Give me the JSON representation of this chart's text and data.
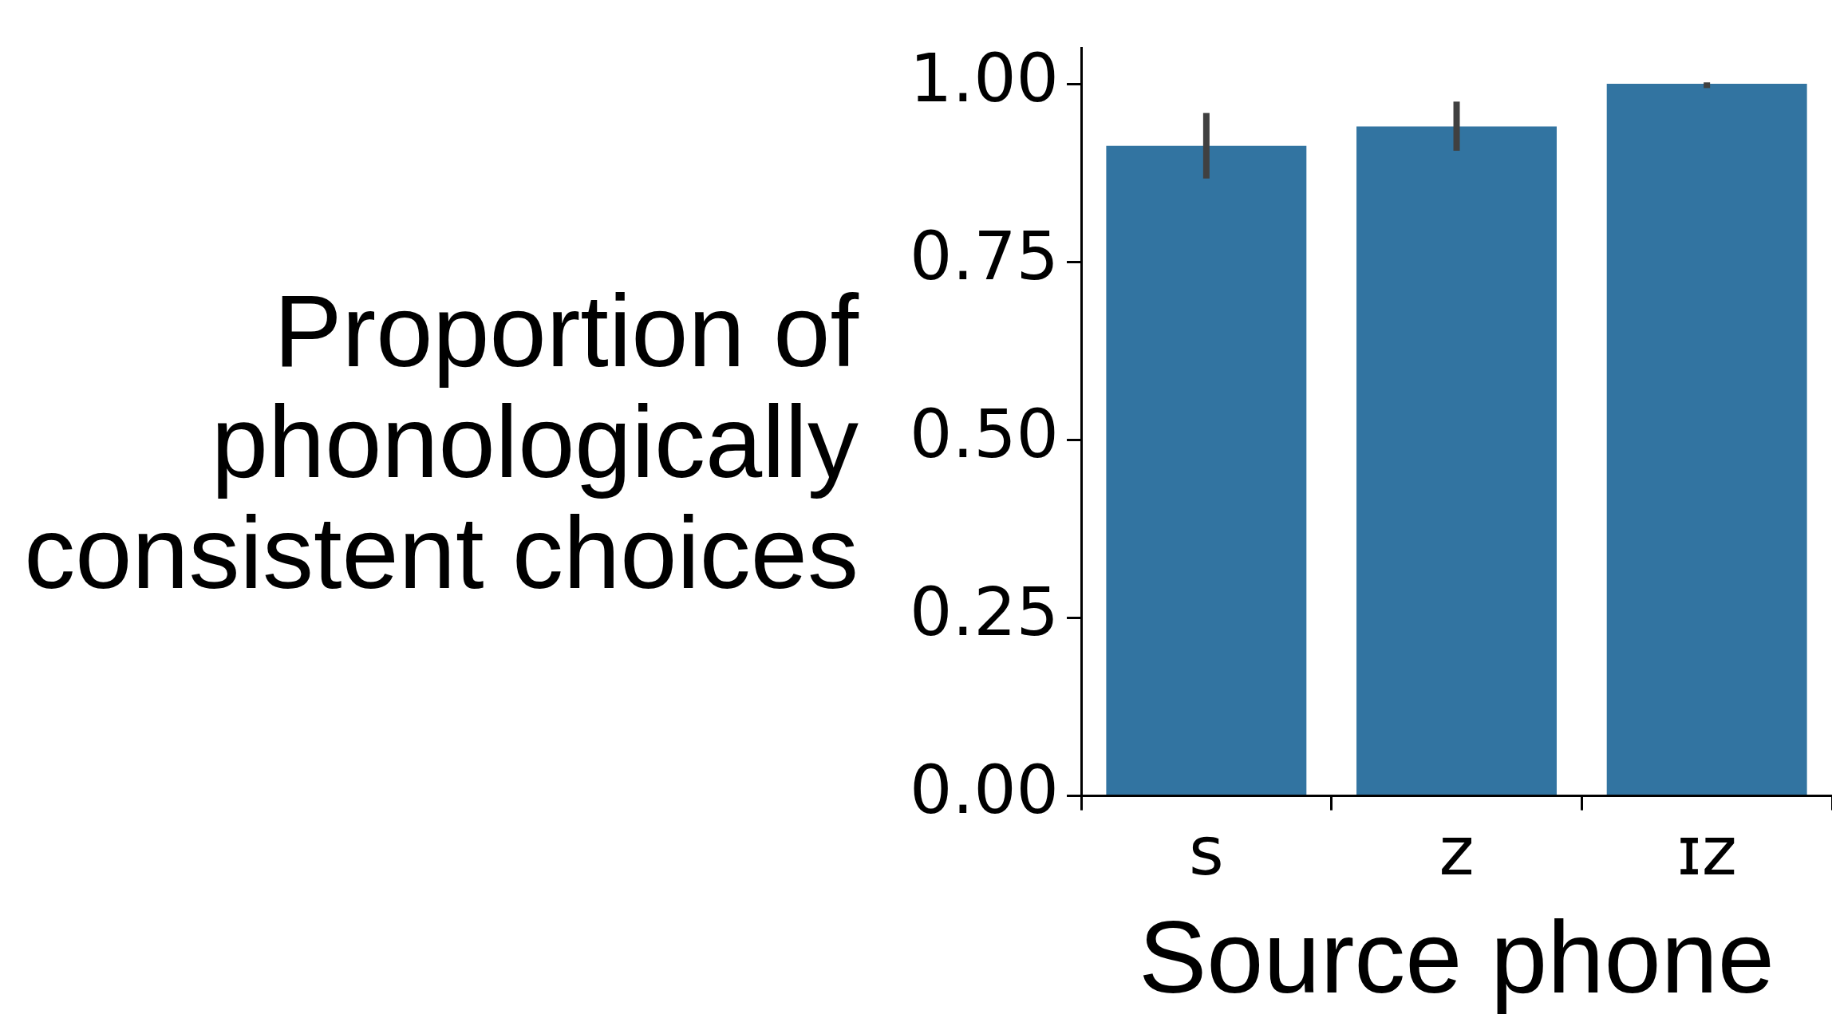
{
  "chart_data": {
    "type": "bar",
    "xlabel": "Source phone",
    "ylabel": "Proportion of\nphonologically\nconsistent choices",
    "categories": [
      "s",
      "z",
      "ɪz"
    ],
    "values": [
      0.913,
      0.94,
      1.0
    ],
    "errors": [
      [
        0.867,
        0.959
      ],
      [
        0.906,
        0.975
      ],
      [
        0.994,
        1.002
      ]
    ],
    "color": "#3274a1",
    "ylim": [
      0,
      1.05
    ],
    "yticks": [
      {
        "value": 0,
        "label": "0.00"
      },
      {
        "value": 0.25,
        "label": "0.25"
      },
      {
        "value": 0.5,
        "label": "0.50"
      },
      {
        "value": 0.75,
        "label": "0.75"
      },
      {
        "value": 1,
        "label": "1.00"
      }
    ],
    "grid": false
  }
}
